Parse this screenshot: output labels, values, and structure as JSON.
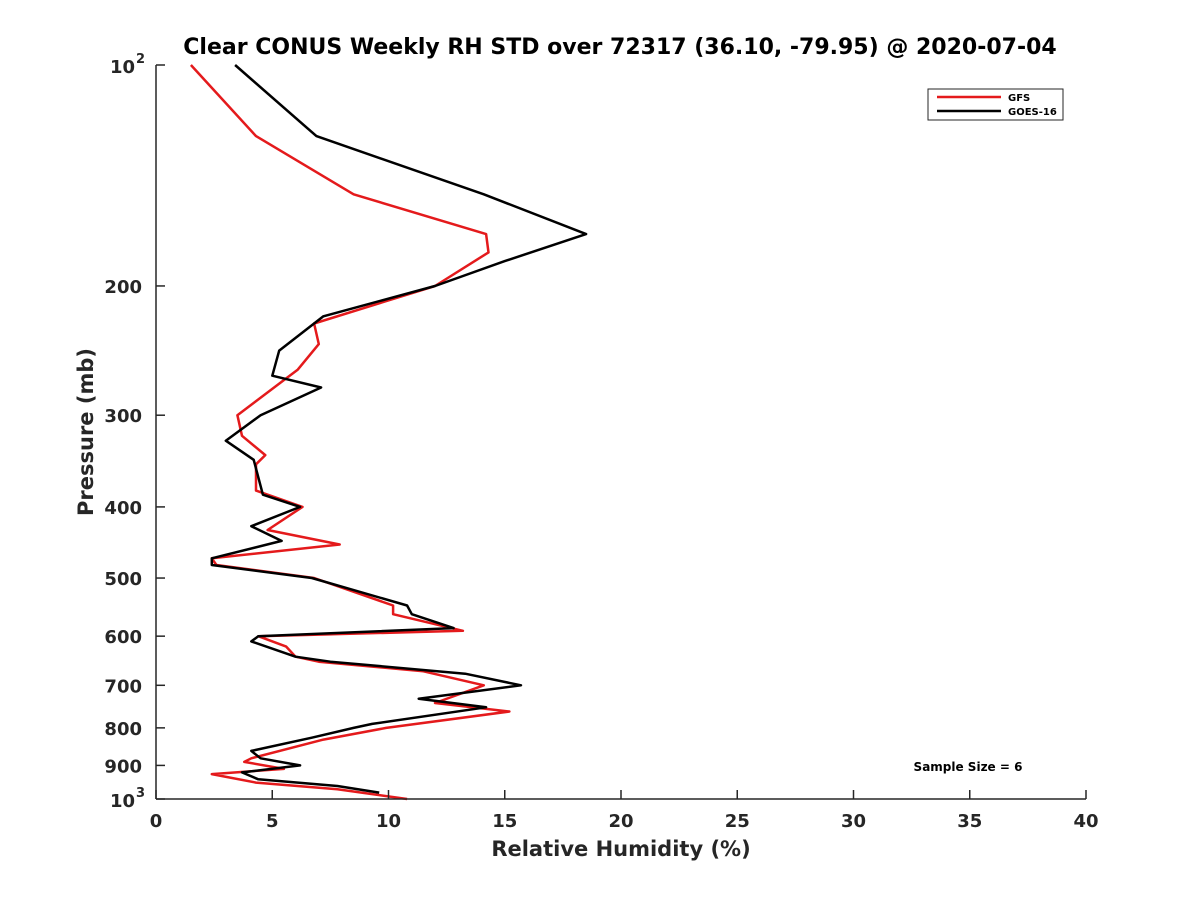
{
  "chart_data": {
    "type": "line",
    "title": "Clear CONUS Weekly RH STD over 72317 (36.10, -79.95) @ 2020-07-04",
    "xlabel": "Relative Humidity (%)",
    "ylabel": "Pressure (mb)",
    "xlim": [
      0,
      40
    ],
    "ylim": [
      100,
      1000
    ],
    "y_scale": "log",
    "y_reversed": true,
    "grid": false,
    "legend_position": "top-right",
    "xticks": [
      0,
      5,
      10,
      15,
      20,
      25,
      30,
      35,
      40
    ],
    "xtick_labels": [
      "0",
      "5",
      "10",
      "15",
      "20",
      "25",
      "30",
      "35",
      "40"
    ],
    "yticks": [
      100,
      200,
      300,
      400,
      500,
      600,
      700,
      800,
      900,
      1000
    ],
    "ytick_labels": [
      {
        "base": "10",
        "exp": "2"
      },
      {
        "base": "200",
        "exp": ""
      },
      {
        "base": "300",
        "exp": ""
      },
      {
        "base": "400",
        "exp": ""
      },
      {
        "base": "500",
        "exp": ""
      },
      {
        "base": "600",
        "exp": ""
      },
      {
        "base": "700",
        "exp": ""
      },
      {
        "base": "800",
        "exp": ""
      },
      {
        "base": "900",
        "exp": ""
      },
      {
        "base": "10",
        "exp": "3"
      }
    ],
    "annotation": "Sample Size = 6",
    "series": [
      {
        "name": "GFS",
        "color": "#e41a1c",
        "points": [
          [
            1.5,
            100
          ],
          [
            4.3,
            125
          ],
          [
            8.5,
            150
          ],
          [
            14.2,
            170
          ],
          [
            14.3,
            180
          ],
          [
            12.0,
            200
          ],
          [
            6.8,
            225
          ],
          [
            7.0,
            240
          ],
          [
            6.1,
            260
          ],
          [
            3.5,
            300
          ],
          [
            3.7,
            320
          ],
          [
            4.7,
            340
          ],
          [
            4.3,
            350
          ],
          [
            4.3,
            380
          ],
          [
            6.3,
            400
          ],
          [
            4.8,
            430
          ],
          [
            7.9,
            450
          ],
          [
            2.4,
            470
          ],
          [
            2.6,
            480
          ],
          [
            6.8,
            500
          ],
          [
            10.2,
            545
          ],
          [
            10.2,
            560
          ],
          [
            13.2,
            590
          ],
          [
            4.4,
            600
          ],
          [
            5.6,
            620
          ],
          [
            6.0,
            640
          ],
          [
            7.0,
            650
          ],
          [
            11.5,
            670
          ],
          [
            14.1,
            700
          ],
          [
            12.0,
            740
          ],
          [
            15.2,
            760
          ],
          [
            9.9,
            800
          ],
          [
            7.2,
            830
          ],
          [
            4.1,
            880
          ],
          [
            3.8,
            890
          ],
          [
            5.5,
            910
          ],
          [
            2.4,
            925
          ],
          [
            4.3,
            950
          ],
          [
            7.8,
            970
          ],
          [
            10.8,
            1000
          ]
        ]
      },
      {
        "name": "GOES-16",
        "color": "#000000",
        "points": [
          [
            3.4,
            100
          ],
          [
            6.9,
            125
          ],
          [
            14.1,
            150
          ],
          [
            18.5,
            170
          ],
          [
            15.0,
            185
          ],
          [
            12.0,
            200
          ],
          [
            7.2,
            220
          ],
          [
            5.3,
            245
          ],
          [
            5.0,
            265
          ],
          [
            7.1,
            275
          ],
          [
            4.5,
            300
          ],
          [
            3.0,
            325
          ],
          [
            4.2,
            345
          ],
          [
            4.6,
            385
          ],
          [
            6.2,
            400
          ],
          [
            4.1,
            425
          ],
          [
            5.4,
            445
          ],
          [
            2.4,
            470
          ],
          [
            2.4,
            480
          ],
          [
            6.7,
            500
          ],
          [
            10.8,
            545
          ],
          [
            11.0,
            560
          ],
          [
            12.8,
            585
          ],
          [
            4.4,
            600
          ],
          [
            4.1,
            610
          ],
          [
            6.0,
            640
          ],
          [
            7.5,
            650
          ],
          [
            13.3,
            675
          ],
          [
            15.7,
            700
          ],
          [
            11.3,
            730
          ],
          [
            14.2,
            750
          ],
          [
            9.3,
            790
          ],
          [
            8.5,
            800
          ],
          [
            6.7,
            825
          ],
          [
            4.1,
            860
          ],
          [
            4.5,
            880
          ],
          [
            6.2,
            900
          ],
          [
            3.7,
            920
          ],
          [
            4.4,
            940
          ],
          [
            7.8,
            960
          ],
          [
            9.6,
            980
          ]
        ]
      }
    ]
  }
}
